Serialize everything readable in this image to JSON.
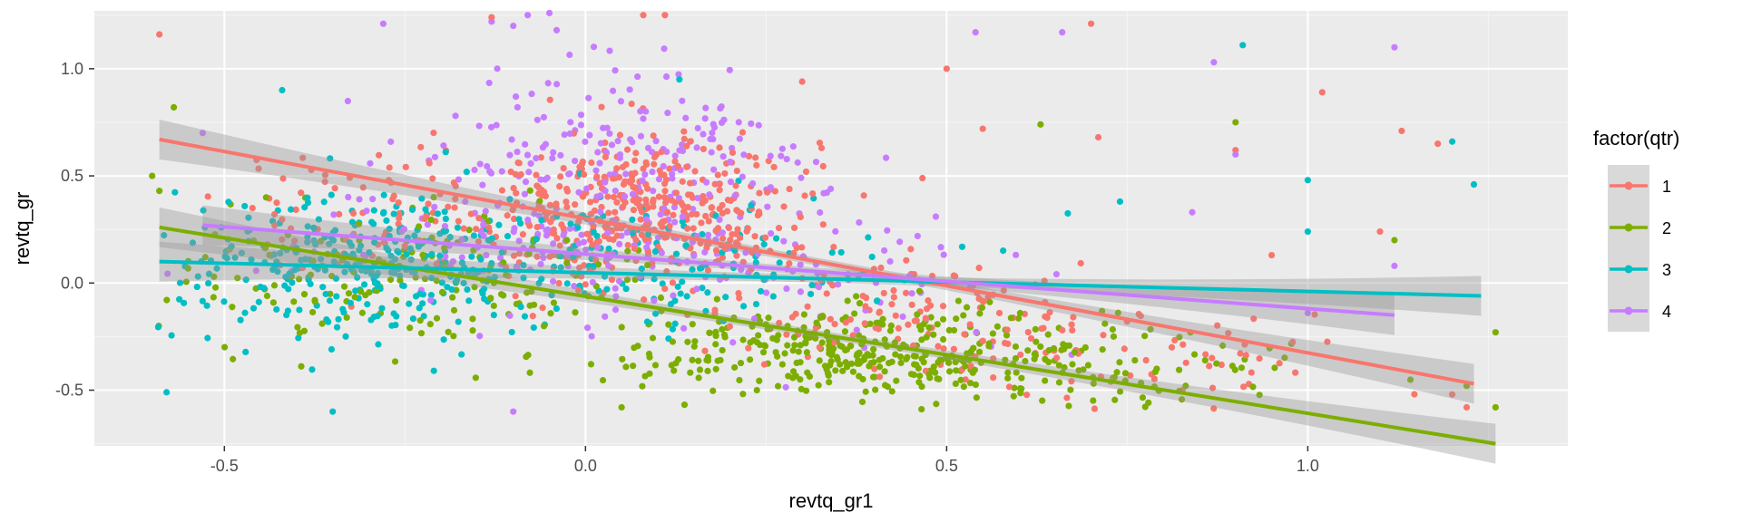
{
  "chart_data": {
    "type": "scatter",
    "title": "",
    "xlabel": "revtq_gr1",
    "ylabel": "revtq_gr",
    "xlim": [
      -0.68,
      1.36
    ],
    "ylim": [
      -0.76,
      1.27
    ],
    "x_ticks": [
      -0.5,
      0.0,
      0.5,
      1.0
    ],
    "x_tick_labels": [
      "-0.5",
      "0.0",
      "0.5",
      "1.0"
    ],
    "y_ticks": [
      -0.5,
      0.0,
      0.5,
      1.0
    ],
    "y_tick_labels": [
      "-0.5",
      "0.0",
      "0.5",
      "1.0"
    ],
    "grid": true,
    "legend": {
      "title": "factor(qtr)",
      "position": "right"
    },
    "series": [
      {
        "name": "1",
        "color": "#F8766D",
        "fit": {
          "x": [
            -0.59,
            1.23
          ],
          "y": [
            0.67,
            -0.47
          ]
        },
        "clusters": [
          {
            "cx": 0.08,
            "cy": 0.35,
            "sx": 0.12,
            "sy": 0.18,
            "n": 420
          },
          {
            "cx": 0.45,
            "cy": -0.15,
            "sx": 0.18,
            "sy": 0.14,
            "n": 140
          },
          {
            "cx": -0.3,
            "cy": 0.35,
            "sx": 0.12,
            "sy": 0.14,
            "n": 70
          },
          {
            "cx": 0.8,
            "cy": -0.4,
            "sx": 0.15,
            "sy": 0.1,
            "n": 45
          }
        ],
        "points": [
          [
            -0.59,
            1.16
          ],
          [
            0.08,
            1.25
          ],
          [
            0.11,
            1.25
          ],
          [
            -0.13,
            1.24
          ],
          [
            0.7,
            1.21
          ],
          [
            0.3,
            0.94
          ],
          [
            0.5,
            1.0
          ],
          [
            1.02,
            0.89
          ],
          [
            1.13,
            0.71
          ],
          [
            0.9,
            0.62
          ],
          [
            0.55,
            0.72
          ],
          [
            1.18,
            0.65
          ],
          [
            1.1,
            0.24
          ],
          [
            0.95,
            0.13
          ],
          [
            1.2,
            -0.52
          ],
          [
            1.22,
            -0.58
          ],
          [
            0.71,
            0.68
          ]
        ]
      },
      {
        "name": "2",
        "color": "#7CAE00",
        "fit": {
          "x": [
            -0.59,
            1.26
          ],
          "y": [
            0.26,
            -0.75
          ]
        },
        "clusters": [
          {
            "cx": 0.4,
            "cy": -0.32,
            "sx": 0.17,
            "sy": 0.1,
            "n": 360
          },
          {
            "cx": -0.25,
            "cy": 0.02,
            "sx": 0.17,
            "sy": 0.17,
            "n": 170
          },
          {
            "cx": 0.75,
            "cy": -0.45,
            "sx": 0.15,
            "sy": 0.1,
            "n": 60
          }
        ],
        "points": [
          [
            -0.57,
            0.82
          ],
          [
            -0.6,
            0.5
          ],
          [
            -0.59,
            0.43
          ],
          [
            0.63,
            0.74
          ],
          [
            0.9,
            0.75
          ],
          [
            1.12,
            0.2
          ],
          [
            1.26,
            -0.23
          ],
          [
            1.26,
            -0.58
          ],
          [
            1.22,
            -0.48
          ],
          [
            0.05,
            -0.58
          ]
        ]
      },
      {
        "name": "3",
        "color": "#00BFC4",
        "fit": {
          "x": [
            -0.59,
            1.24
          ],
          "y": [
            0.1,
            -0.06
          ]
        },
        "clusters": [
          {
            "cx": -0.3,
            "cy": 0.08,
            "sx": 0.16,
            "sy": 0.16,
            "n": 330
          },
          {
            "cx": 0.1,
            "cy": 0.1,
            "sx": 0.18,
            "sy": 0.16,
            "n": 130
          }
        ],
        "points": [
          [
            0.91,
            1.11
          ],
          [
            1.23,
            0.46
          ],
          [
            1.0,
            0.48
          ],
          [
            1.2,
            0.66
          ],
          [
            1.0,
            0.24
          ],
          [
            -0.58,
            -0.51
          ],
          [
            -0.35,
            -0.6
          ],
          [
            0.13,
            0.95
          ],
          [
            -0.42,
            0.9
          ],
          [
            0.74,
            0.38
          ]
        ]
      },
      {
        "name": "4",
        "color": "#C77CFF",
        "fit": {
          "x": [
            -0.53,
            1.12
          ],
          "y": [
            0.27,
            -0.15
          ]
        },
        "clusters": [
          {
            "cx": 0.05,
            "cy": 0.45,
            "sx": 0.14,
            "sy": 0.3,
            "n": 280
          },
          {
            "cx": -0.2,
            "cy": 0.2,
            "sx": 0.18,
            "sy": 0.12,
            "n": 60
          },
          {
            "cx": 0.35,
            "cy": 0.0,
            "sx": 0.15,
            "sy": 0.15,
            "n": 60
          }
        ],
        "points": [
          [
            -0.28,
            1.21
          ],
          [
            -0.13,
            1.22
          ],
          [
            -0.1,
            1.2
          ],
          [
            -0.05,
            1.26
          ],
          [
            -0.04,
            1.18
          ],
          [
            -0.08,
            1.25
          ],
          [
            0.54,
            1.17
          ],
          [
            0.66,
            1.17
          ],
          [
            1.12,
            1.1
          ],
          [
            0.87,
            1.03
          ],
          [
            0.9,
            0.6
          ],
          [
            1.12,
            0.08
          ],
          [
            1.0,
            -0.14
          ],
          [
            -0.53,
            0.7
          ],
          [
            -0.1,
            -0.6
          ],
          [
            0.84,
            0.33
          ]
        ]
      }
    ]
  }
}
